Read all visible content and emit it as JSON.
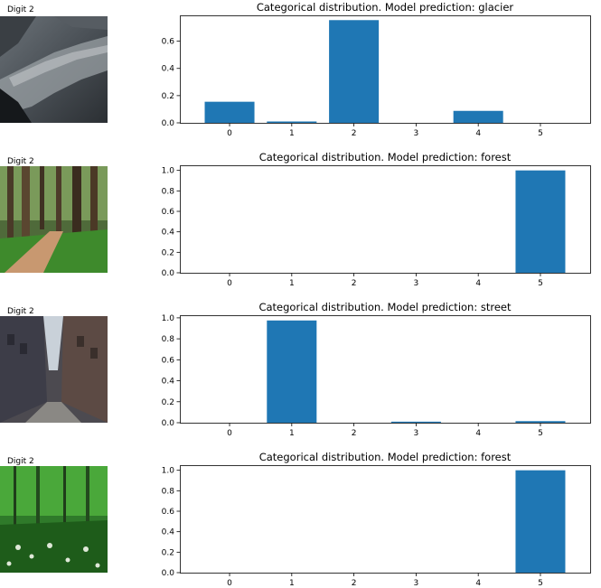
{
  "panels": [
    {
      "image_label": "Digit 2",
      "image_scene": "glacier",
      "chart_data": {
        "type": "bar",
        "title": "Categorical distribution. Model prediction: glacier",
        "categories": [
          "0",
          "1",
          "2",
          "3",
          "4",
          "5"
        ],
        "values": [
          0.155,
          0.01,
          0.755,
          0.0,
          0.088,
          0.0
        ],
        "ylim": [
          0,
          0.79
        ],
        "yticks": [
          "0.0",
          "0.2",
          "0.4",
          "0.6"
        ],
        "ytick_values": [
          0.0,
          0.2,
          0.4,
          0.6
        ],
        "xlabel": "",
        "ylabel": "",
        "grid": false
      }
    },
    {
      "image_label": "Digit 2",
      "image_scene": "forest path",
      "chart_data": {
        "type": "bar",
        "title": "Categorical distribution. Model prediction: forest",
        "categories": [
          "0",
          "1",
          "2",
          "3",
          "4",
          "5"
        ],
        "values": [
          0.0,
          0.0,
          0.0,
          0.0,
          0.0,
          1.0
        ],
        "ylim": [
          0,
          1.05
        ],
        "yticks": [
          "0.0",
          "0.2",
          "0.4",
          "0.6",
          "0.8",
          "1.0"
        ],
        "ytick_values": [
          0.0,
          0.2,
          0.4,
          0.6,
          0.8,
          1.0
        ],
        "xlabel": "",
        "ylabel": "",
        "grid": false
      }
    },
    {
      "image_label": "Digit 2",
      "image_scene": "street",
      "chart_data": {
        "type": "bar",
        "title": "Categorical distribution. Model prediction: street",
        "categories": [
          "0",
          "1",
          "2",
          "3",
          "4",
          "5"
        ],
        "values": [
          0.0,
          0.975,
          0.0,
          0.01,
          0.0,
          0.015
        ],
        "ylim": [
          0,
          1.025
        ],
        "yticks": [
          "0.0",
          "0.2",
          "0.4",
          "0.6",
          "0.8",
          "1.0"
        ],
        "ytick_values": [
          0.0,
          0.2,
          0.4,
          0.6,
          0.8,
          1.0
        ],
        "xlabel": "",
        "ylabel": "",
        "grid": false
      }
    },
    {
      "image_label": "Digit 2",
      "image_scene": "green forest",
      "chart_data": {
        "type": "bar",
        "title": "Categorical distribution. Model prediction: forest",
        "categories": [
          "0",
          "1",
          "2",
          "3",
          "4",
          "5"
        ],
        "values": [
          0.0,
          0.0,
          0.0,
          0.0,
          0.0,
          1.0
        ],
        "ylim": [
          0,
          1.05
        ],
        "yticks": [
          "0.0",
          "0.2",
          "0.4",
          "0.6",
          "0.8",
          "1.0"
        ],
        "ytick_values": [
          0.0,
          0.2,
          0.4,
          0.6,
          0.8,
          1.0
        ],
        "xlabel": "",
        "ylabel": "",
        "grid": false
      }
    }
  ],
  "colors": {
    "bar": "#1f77b4",
    "axis": "#000000",
    "background": "#ffffff"
  }
}
